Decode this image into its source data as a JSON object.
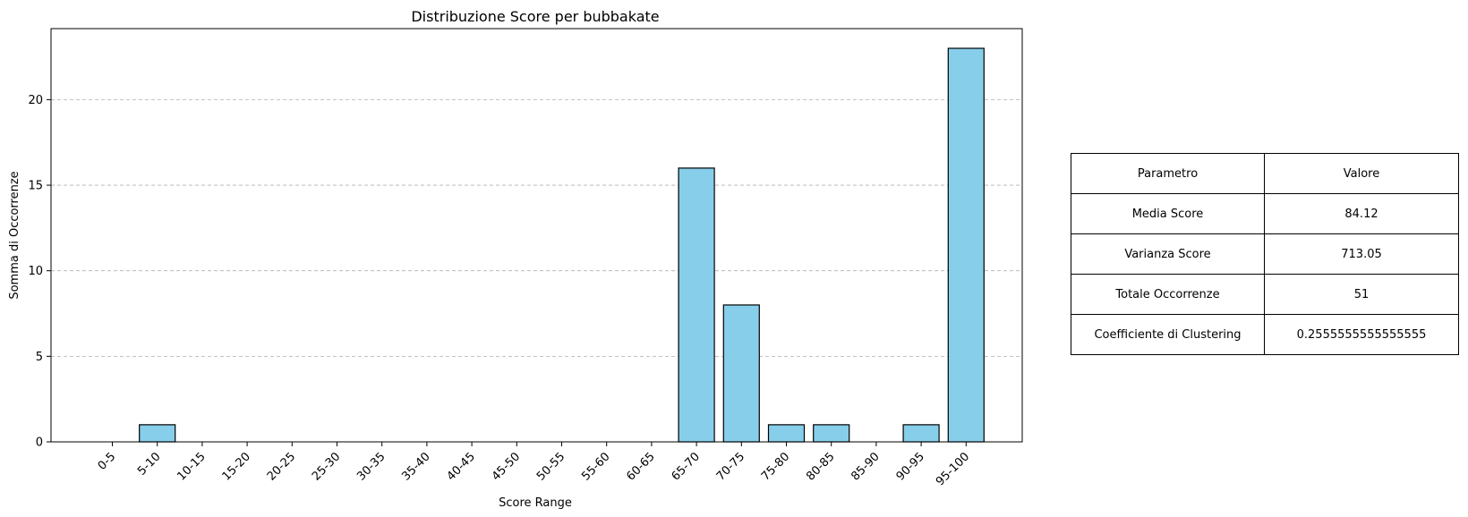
{
  "chart_data": {
    "type": "bar",
    "title": "Distribuzione Score per bubbakate",
    "xlabel": "Score Range",
    "ylabel": "Somma di Occorrenze",
    "categories": [
      "0-5",
      "5-10",
      "10-15",
      "15-20",
      "20-25",
      "25-30",
      "30-35",
      "35-40",
      "40-45",
      "45-50",
      "50-55",
      "55-60",
      "60-65",
      "65-70",
      "70-75",
      "75-80",
      "80-85",
      "85-90",
      "90-95",
      "95-100"
    ],
    "values": [
      0,
      1,
      0,
      0,
      0,
      0,
      0,
      0,
      0,
      0,
      0,
      0,
      0,
      16,
      8,
      1,
      1,
      0,
      1,
      23
    ],
    "ylim": [
      0,
      24.15
    ],
    "yticks": [
      0,
      5,
      10,
      15,
      20
    ],
    "grid": "y-dashed",
    "bar_color": "#87CEEB",
    "edge_color": "#000000"
  },
  "table": {
    "header": {
      "param": "Parametro",
      "value": "Valore"
    },
    "rows": [
      {
        "param": "Media Score",
        "value": "84.12"
      },
      {
        "param": "Varianza Score",
        "value": "713.05"
      },
      {
        "param": "Totale Occorrenze",
        "value": "51"
      },
      {
        "param": "Coefficiente di Clustering",
        "value": "0.2555555555555555"
      }
    ]
  }
}
